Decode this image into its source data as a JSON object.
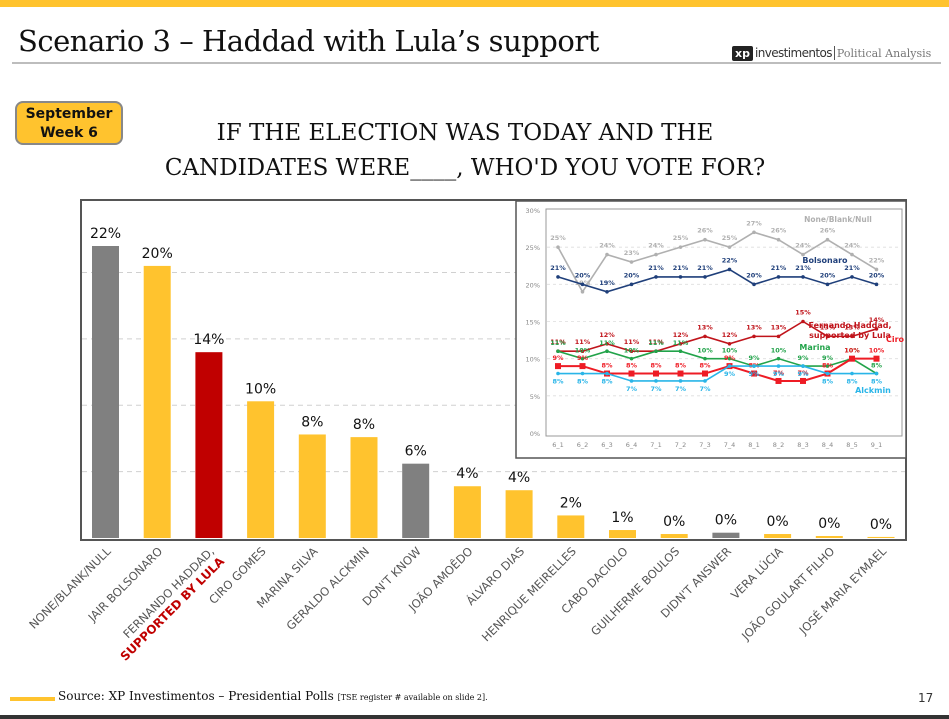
{
  "header": {
    "title": "Scenario 3 – Haddad with Lula’s support",
    "logo_mark": "xp",
    "logo_name": "investimentos",
    "logo_tagline": "Political Analysis"
  },
  "badge": {
    "line1": "September",
    "line2": "Week 6"
  },
  "question": {
    "line1": "IF THE ELECTION WAS TODAY AND THE",
    "line2": "CANDIDATES WERE____, WHO'D YOU VOTE FOR?"
  },
  "colors": {
    "yellow": "#FFC32E",
    "gray": "#808080",
    "red": "#C00000"
  },
  "chart_data": [
    {
      "type": "bar",
      "title": "",
      "xlabel": "",
      "ylabel": "",
      "ylim": [
        0,
        25
      ],
      "grid": true,
      "categories": [
        "NONE/BLANK/NULL",
        "JAIR BOLSONARO",
        "FERNANDO HADDAD,",
        "CIRO GOMES",
        "MARINA SILVA",
        "GERALDO ALCKMIN",
        "DON'T KNOW",
        "JOÃO AMOÊDO",
        "ÁLVARO DIAS",
        "HENRIQUE MEIRELLES",
        "CABO DACIOLO",
        "GUILHERME BOULOS",
        "DIDN'T ANSWER",
        "VERA LÚCIA",
        "JOÃO GOULART FILHO",
        "JOSÉ MARIA EYMAEL"
      ],
      "category_sublabels": {
        "2": "SUPPORTED BY LULA"
      },
      "values": [
        22,
        20,
        14,
        10,
        8,
        8,
        6,
        4,
        4,
        2,
        1,
        0,
        0,
        0,
        0,
        0
      ],
      "bar_heights_exact": [
        22,
        20.5,
        14,
        10.3,
        7.8,
        7.6,
        5.6,
        3.9,
        3.6,
        1.7,
        0.6,
        0.3,
        0.4,
        0.3,
        0.15,
        0.08
      ],
      "data_labels": [
        "22%",
        "20%",
        "14%",
        "10%",
        "8%",
        "8%",
        "6%",
        "4%",
        "4%",
        "2%",
        "1%",
        "0%",
        "0%",
        "0%",
        "0%",
        "0%"
      ],
      "bar_colors": [
        "gray",
        "yellow",
        "red",
        "yellow",
        "yellow",
        "yellow",
        "gray",
        "yellow",
        "yellow",
        "yellow",
        "yellow",
        "yellow",
        "gray",
        "yellow",
        "yellow",
        "yellow"
      ]
    },
    {
      "type": "line",
      "title": "",
      "legend": "inline-labels",
      "ylim": [
        0,
        30
      ],
      "yticks": [
        "0%",
        "5%",
        "10%",
        "15%",
        "20%",
        "25%",
        "30%"
      ],
      "x": [
        "6_1",
        "6_2",
        "6_3",
        "6_4",
        "7_1",
        "7_2",
        "7_3",
        "7_4",
        "8_1",
        "8_2",
        "8_3",
        "8_4",
        "8_5",
        "9_1"
      ],
      "series": [
        {
          "name": "None/Blank/Null",
          "color": "#B0B0B0",
          "values": [
            25,
            19,
            24,
            23,
            24,
            25,
            26,
            25,
            27,
            26,
            24,
            26,
            24,
            22
          ]
        },
        {
          "name": "Bolsonaro",
          "color": "#1F3F7A",
          "values": [
            21,
            20,
            19,
            20,
            21,
            21,
            21,
            22,
            20,
            21,
            21,
            20,
            21,
            20
          ]
        },
        {
          "name": "Fernando Haddad, supported by Lula",
          "color": "#C0141B",
          "values": [
            11,
            11,
            12,
            11,
            11,
            12,
            13,
            12,
            13,
            13,
            15,
            13,
            13,
            14
          ]
        },
        {
          "name": "Marina",
          "color": "#22A34A",
          "values": [
            11,
            10,
            11,
            10,
            11,
            11,
            10,
            10,
            9,
            10,
            9,
            9,
            10,
            8
          ]
        },
        {
          "name": "Ciro",
          "color": "#EE1C25",
          "values": [
            9,
            9,
            8,
            8,
            8,
            8,
            8,
            9,
            8,
            7,
            7,
            8,
            10,
            10
          ]
        },
        {
          "name": "Alckmin",
          "color": "#29B5E8",
          "values": [
            8,
            8,
            8,
            7,
            7,
            7,
            7,
            9,
            9,
            9,
            9,
            8,
            8,
            8
          ]
        }
      ]
    }
  ],
  "footer": {
    "source": "Source: XP Investimentos – Presidential Polls",
    "note": "[TSE register # available on slide 2].",
    "page": "17"
  }
}
